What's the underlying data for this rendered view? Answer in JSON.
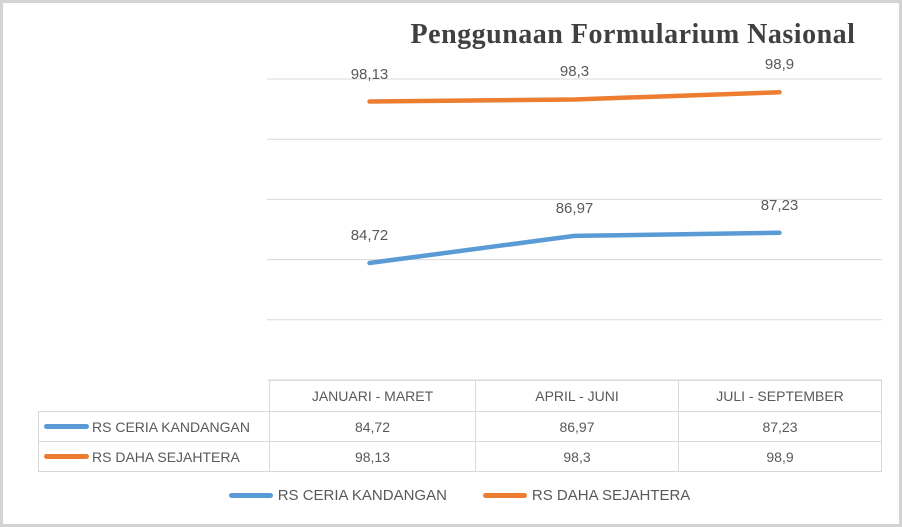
{
  "chart_data": {
    "type": "line",
    "title": "Penggunaan Formularium Nasional",
    "categories": [
      "JANUARI - MARET",
      "APRIL - JUNI",
      "JULI - SEPTEMBER"
    ],
    "series": [
      {
        "name": "RS CERIA KANDANGAN",
        "values": [
          84.72,
          86.97,
          87.23
        ],
        "value_labels": [
          "84,72",
          "86,97",
          "87,23"
        ],
        "color": "#5B9BD5"
      },
      {
        "name": "RS DAHA SEJAHTERA",
        "values": [
          98.13,
          98.3,
          98.9
        ],
        "value_labels": [
          "98,13",
          "98,3",
          "98,9"
        ],
        "color": "#ED7D31"
      }
    ],
    "xlabel": "",
    "ylabel": "",
    "ylim": [
      75,
      100
    ],
    "gridline_step": 5,
    "grid": "horizontal-only",
    "axis_tick_labels_shown": false,
    "legend_position": "bottom",
    "data_table_shown": true
  },
  "table": {
    "headers": [
      "JANUARI - MARET",
      "APRIL - JUNI",
      "JULI - SEPTEMBER"
    ],
    "rows": [
      {
        "label": "RS CERIA KANDANGAN",
        "marker_color": "#5B9BD5",
        "values": [
          "84,72",
          "86,97",
          "87,23"
        ]
      },
      {
        "label": "RS DAHA SEJAHTERA",
        "marker_color": "#ED7D31",
        "values": [
          "98,13",
          "98,3",
          "98,9"
        ]
      }
    ]
  },
  "legend": {
    "items": [
      {
        "label": "RS CERIA KANDANGAN",
        "color": "#5B9BD5"
      },
      {
        "label": "RS DAHA SEJAHTERA",
        "color": "#ED7D31"
      }
    ]
  },
  "colors": {
    "gridline": "#d9d9d9",
    "label_text": "#595959",
    "title_text": "#404040",
    "frame_border": "#d3d3d3"
  }
}
